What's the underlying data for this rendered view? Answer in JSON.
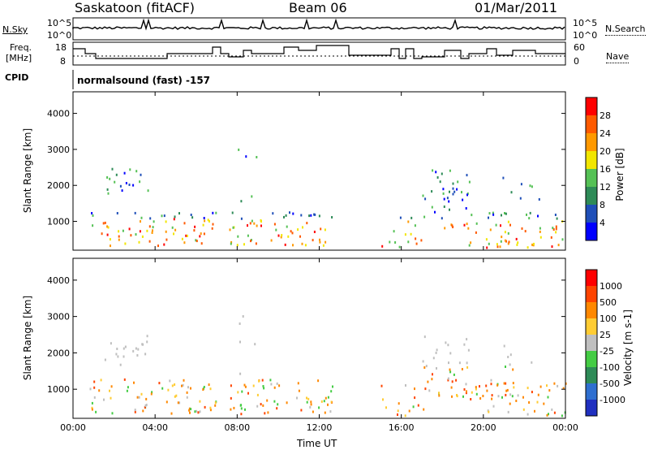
{
  "header": {
    "station": "Saskatoon (fitACF)",
    "beam": "Beam 06",
    "date": "01/Mar/2011"
  },
  "strips": {
    "nsky_label": "N.Sky",
    "nsearch_label": "N.Search",
    "nsky_ticks": [
      "10^5",
      "10^0"
    ],
    "nsearch_ticks": [
      "10^5",
      "10^0"
    ],
    "freq_label_line1": "Freq.",
    "freq_label_line2": "[MHz]",
    "freq_ticks": [
      "18",
      "8"
    ],
    "nave_label": "Nave",
    "nave_ticks": [
      "60",
      "0"
    ],
    "cpid_label": "CPID",
    "cpid_text": "normalsound (fast) -157"
  },
  "chart_data": [
    {
      "type": "heatmap",
      "name": "power-panel",
      "ylabel": "Slant Range [km]",
      "y_ticks": [
        "1000",
        "2000",
        "3000",
        "4000"
      ],
      "ylim": [
        200,
        4600
      ],
      "colorbar_label": "Power [dB]",
      "colorbar_ticks": [
        "4",
        "8",
        "12",
        "16",
        "20",
        "24",
        "28"
      ],
      "colors": [
        "#0000ff",
        "#1f4fb8",
        "#2e8b57",
        "#55c155",
        "#f2e600",
        "#ff9900",
        "#ff5a00",
        "#ff0000"
      ]
    },
    {
      "type": "heatmap",
      "name": "velocity-panel",
      "ylabel": "Slant Range [km]",
      "y_ticks": [
        "1000",
        "2000",
        "3000",
        "4000"
      ],
      "ylim": [
        200,
        4600
      ],
      "colorbar_label": "Velocity [m s-1]",
      "colorbar_ticks": [
        "1000",
        "500",
        "100",
        "25",
        "-25",
        "-100",
        "-500",
        "-1000"
      ],
      "colors": [
        "#2030c0",
        "#2f6fd0",
        "#2e8b57",
        "#44cc44",
        "#bfbfbf",
        "#ffcc33",
        "#ff8800",
        "#ff4400",
        "#ff0000"
      ]
    }
  ],
  "x_axis": {
    "title": "Time UT",
    "ticks": [
      "00:00",
      "04:00",
      "08:00",
      "12:00",
      "16:00",
      "20:00",
      "00:00"
    ]
  }
}
